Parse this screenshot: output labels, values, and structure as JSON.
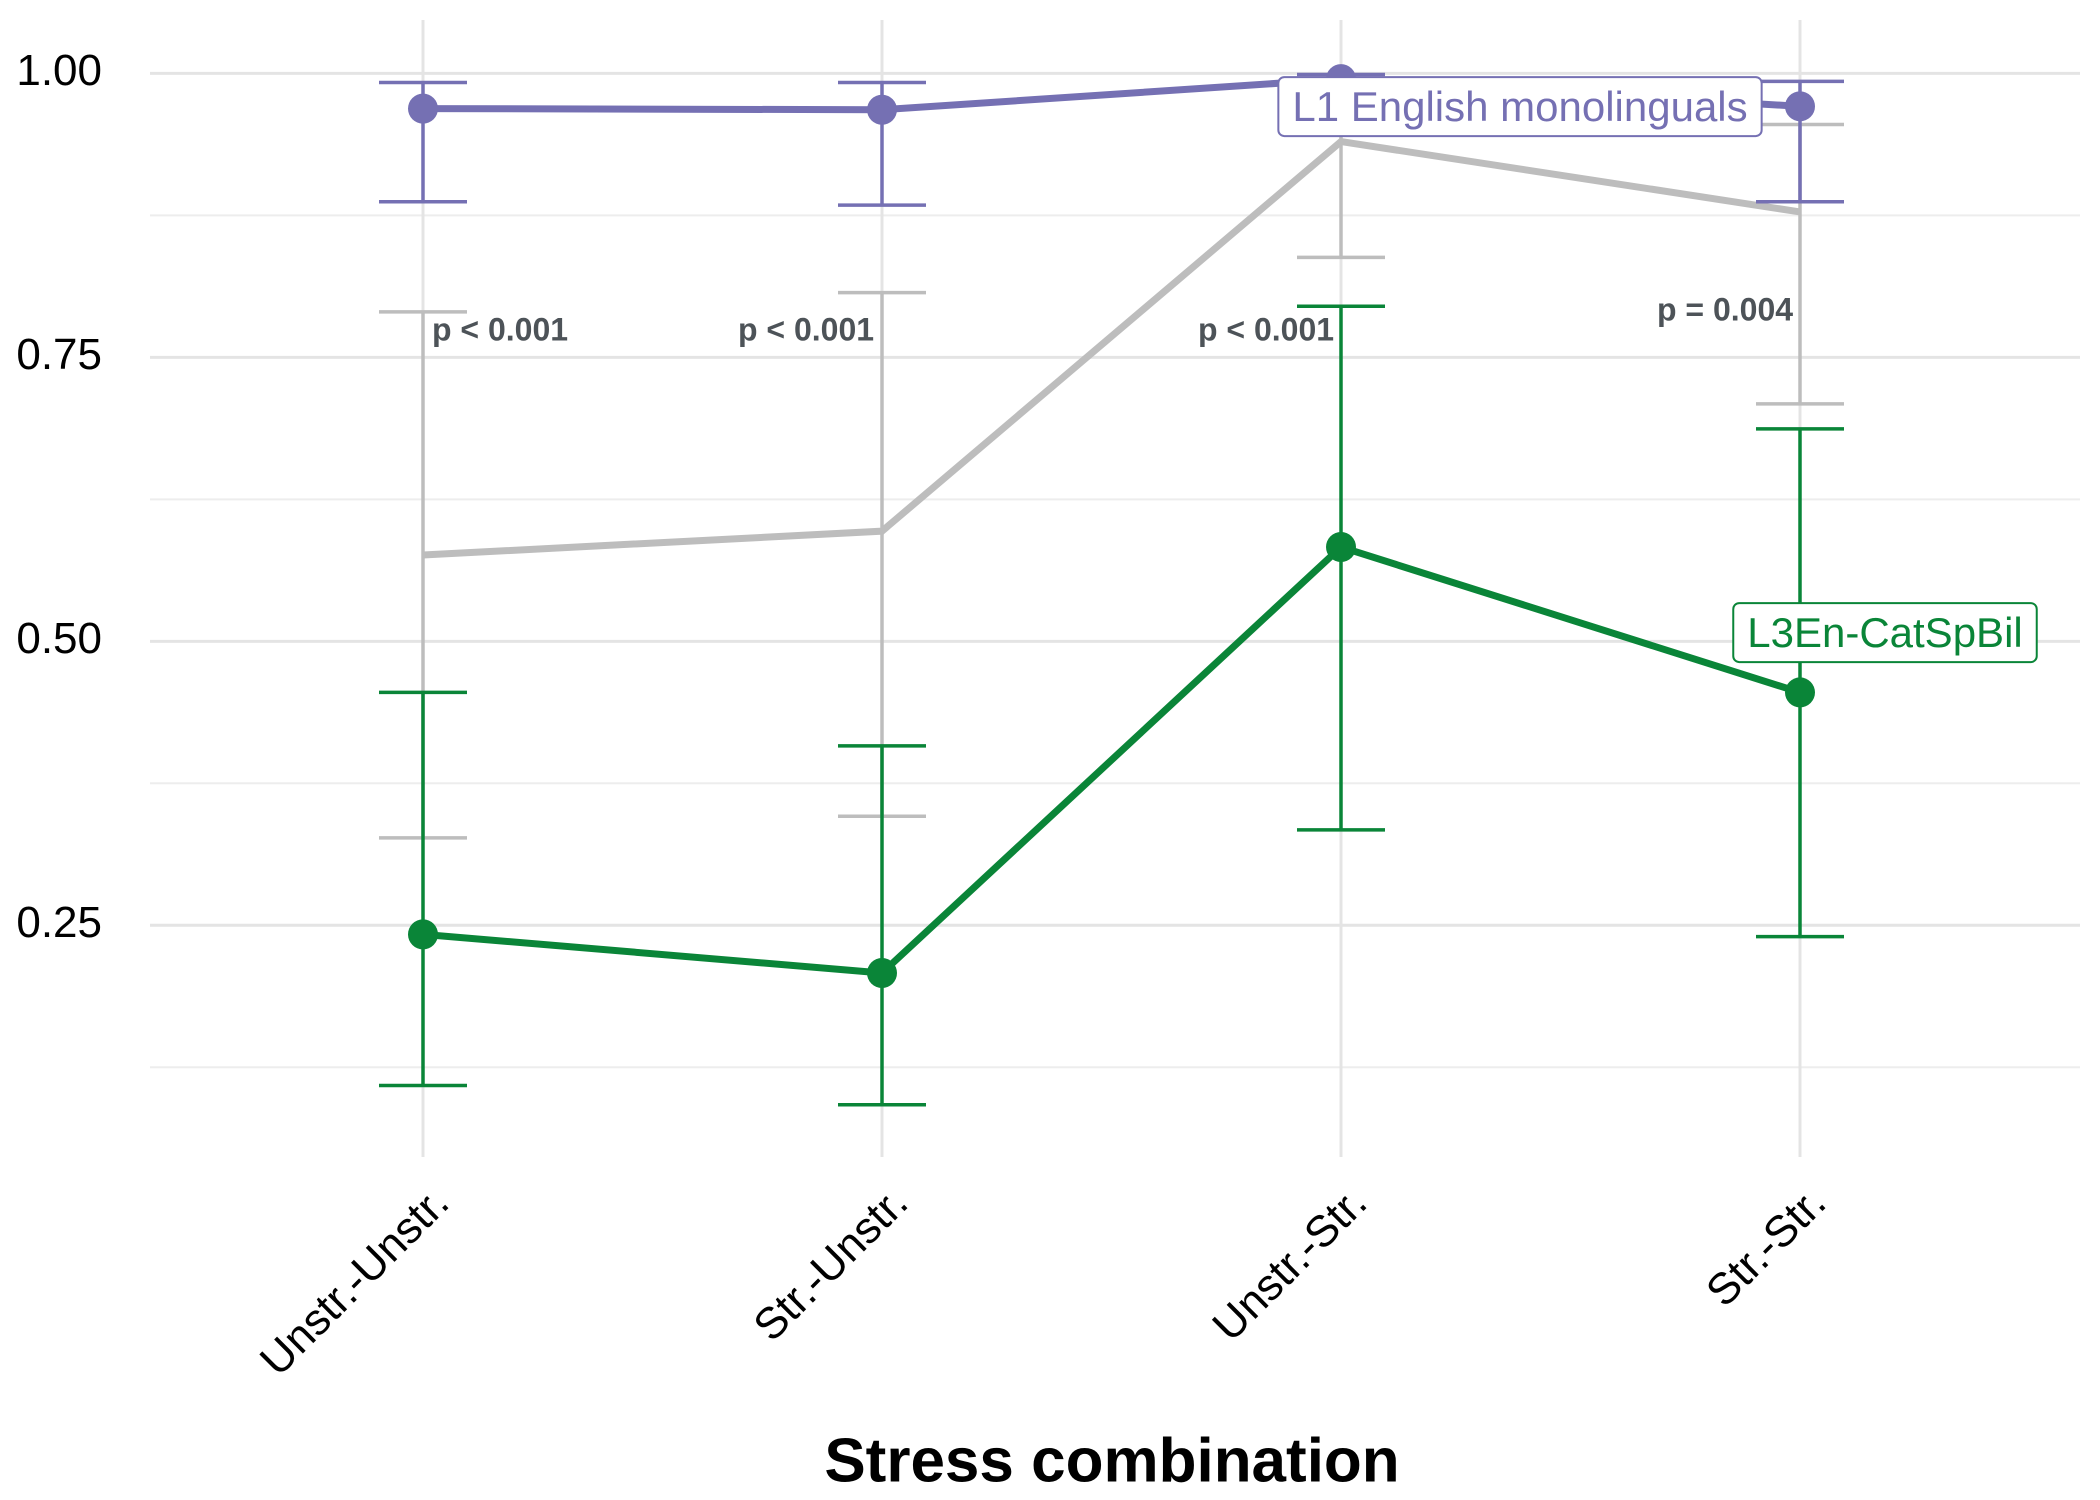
{
  "chart_data": {
    "type": "line",
    "x_label": "Stress combination",
    "categories": [
      "Unstr.-Unstr.",
      "Str.-Unstr.",
      "Unstr.-Str.",
      "Str.-Str."
    ],
    "ylim": [
      0.046,
      1.047
    ],
    "yticks": [
      {
        "value": 0.25,
        "label": "0.25"
      },
      {
        "value": 0.5,
        "label": "0.50"
      },
      {
        "value": 0.75,
        "label": "0.75"
      },
      {
        "value": 1.0,
        "label": "1.00"
      }
    ],
    "minor_yticks": [
      0.125,
      0.375,
      0.625,
      0.875
    ],
    "grid": true,
    "series": [
      {
        "color": "#bdbdbd",
        "values": [
          0.576,
          0.597,
          0.94,
          0.878
        ],
        "lower": [
          0.327,
          0.346,
          0.838,
          0.709
        ],
        "upper": [
          0.79,
          0.807,
          0.99,
          0.955
        ]
      },
      {
        "name": "L3En-CatSpBil",
        "color": "#0a8538",
        "values": [
          0.242,
          0.208,
          0.583,
          0.455
        ],
        "lower": [
          0.109,
          0.092,
          0.334,
          0.24
        ],
        "upper": [
          0.455,
          0.408,
          0.795,
          0.687
        ]
      },
      {
        "name": "L1 English monolinguals",
        "color": "#7570b3",
        "values": [
          0.969,
          0.968,
          0.995,
          0.971
        ],
        "lower": [
          0.887,
          0.884,
          0.96,
          0.887
        ],
        "upper": [
          0.992,
          0.992,
          0.999,
          0.993
        ]
      }
    ],
    "annotations": [
      "p < 0.001",
      "p < 0.001",
      "p < 0.001",
      "p = 0.004"
    ]
  }
}
